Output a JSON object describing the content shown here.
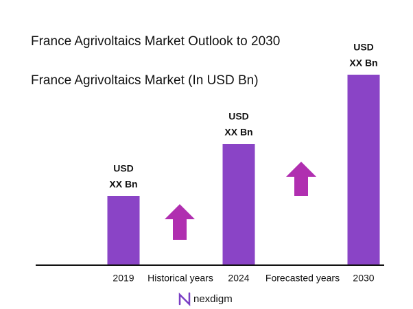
{
  "chart_data": {
    "type": "bar",
    "title": "France Agrivoltaics Market Outlook to 2030",
    "subtitle": "France Agrivoltaics Market (In USD Bn)",
    "categories": [
      "2019",
      "2024",
      "2030"
    ],
    "values": [
      100,
      176,
      277
    ],
    "color": "#8a44c6",
    "ylim": [
      0,
      300
    ],
    "bar_annotations": [
      [
        "USD",
        "XX Bn"
      ],
      [
        "USD",
        "XX Bn"
      ],
      [
        "USD",
        "XX Bn"
      ]
    ],
    "period_labels": [
      "Historical years",
      "Forecasted years"
    ],
    "logo": "nexdigm"
  }
}
